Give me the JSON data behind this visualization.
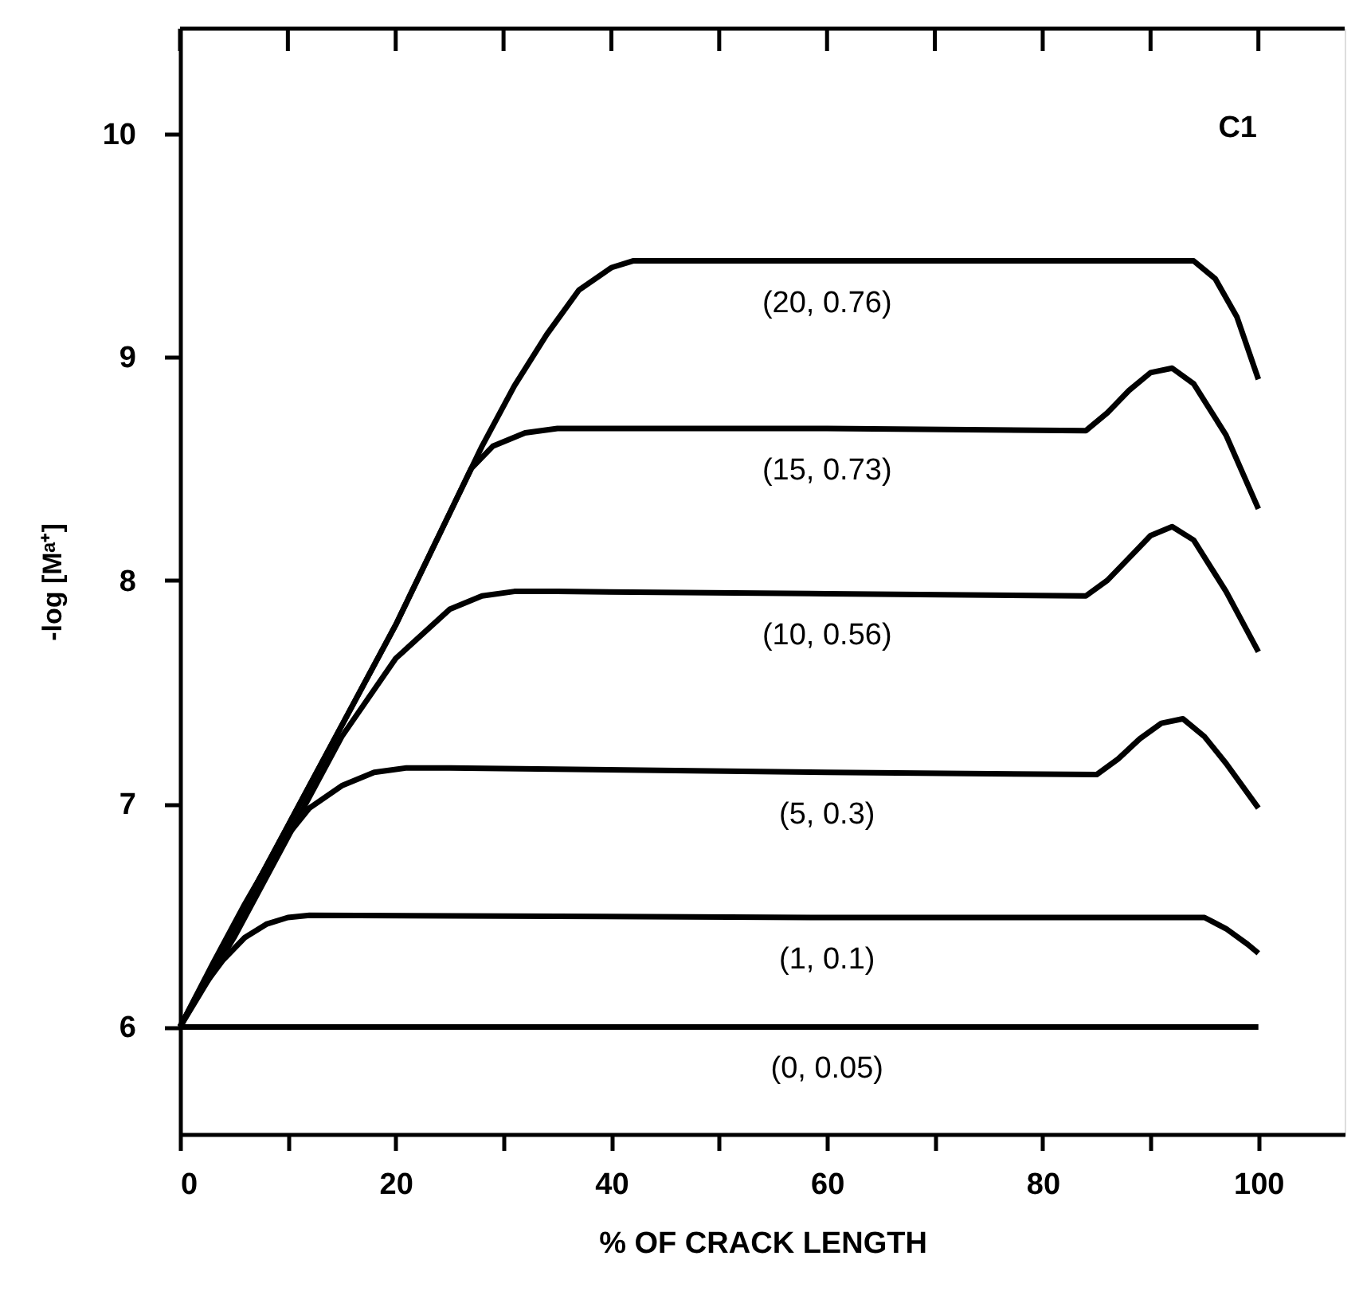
{
  "chart_data": {
    "type": "line",
    "xlabel": "% OF CRACK LENGTH",
    "ylabel": "-log [Mᵃ⁺]",
    "annotations": [
      "C1"
    ],
    "xlim": [
      0,
      108
    ],
    "ylim": [
      5.52,
      10.47
    ],
    "xticks": [
      0,
      {
        "value": 10,
        "label": null
      },
      20,
      {
        "value": 30,
        "label": null
      },
      40,
      {
        "value": 50,
        "label": null
      },
      60,
      {
        "value": 70,
        "label": null
      },
      80,
      {
        "value": 90,
        "label": null
      },
      100
    ],
    "yticks": [
      6,
      7,
      8,
      9,
      10
    ],
    "grid": false,
    "marker": "none",
    "line_style": "solid",
    "series": [
      {
        "name": "(20, 0.76)",
        "color": "#000000",
        "x": [
          0,
          5,
          10,
          15,
          20,
          25,
          28,
          31,
          34,
          37,
          40,
          42,
          60,
          94,
          96,
          98,
          100
        ],
        "values": [
          6,
          6.45,
          6.9,
          7.35,
          7.8,
          8.3,
          8.6,
          8.87,
          9.1,
          9.3,
          9.4,
          9.43,
          9.43,
          9.43,
          9.35,
          9.18,
          8.9
        ]
      },
      {
        "name": "(15, 0.73)",
        "color": "#000000",
        "x": [
          0,
          5,
          10,
          15,
          20,
          25,
          27,
          29,
          32,
          35,
          60,
          84,
          86,
          88,
          90,
          92,
          94,
          97,
          100
        ],
        "values": [
          6,
          6.45,
          6.9,
          7.35,
          7.8,
          8.3,
          8.5,
          8.6,
          8.66,
          8.68,
          8.68,
          8.67,
          8.75,
          8.85,
          8.93,
          8.95,
          8.88,
          8.65,
          8.32
        ]
      },
      {
        "name": "(10, 0.56)",
        "color": "#000000",
        "x": [
          0,
          5,
          10,
          15,
          20,
          25,
          28,
          31,
          35,
          60,
          84,
          86,
          88,
          90,
          92,
          94,
          97,
          100
        ],
        "values": [
          6,
          6.4,
          6.85,
          7.3,
          7.65,
          7.87,
          7.93,
          7.95,
          7.95,
          7.94,
          7.93,
          8.0,
          8.1,
          8.2,
          8.24,
          8.18,
          7.95,
          7.68
        ]
      },
      {
        "name": "(5, 0.3)",
        "color": "#000000",
        "x": [
          0,
          3,
          6,
          9,
          12,
          15,
          18,
          21,
          25,
          60,
          85,
          87,
          89,
          91,
          93,
          95,
          97,
          100
        ],
        "values": [
          6,
          6.28,
          6.55,
          6.8,
          6.98,
          7.08,
          7.14,
          7.16,
          7.16,
          7.14,
          7.13,
          7.2,
          7.29,
          7.36,
          7.38,
          7.3,
          7.18,
          6.98
        ]
      },
      {
        "name": "(1, 0.1)",
        "color": "#000000",
        "x": [
          0,
          2,
          4,
          6,
          8,
          10,
          12,
          60,
          95,
          97,
          99,
          100
        ],
        "values": [
          6,
          6.17,
          6.3,
          6.4,
          6.46,
          6.49,
          6.5,
          6.49,
          6.49,
          6.44,
          6.37,
          6.33
        ]
      },
      {
        "name": "(0, 0.05)",
        "color": "#000000",
        "x": [
          0,
          60,
          100
        ],
        "values": [
          6,
          6,
          6
        ]
      }
    ]
  }
}
